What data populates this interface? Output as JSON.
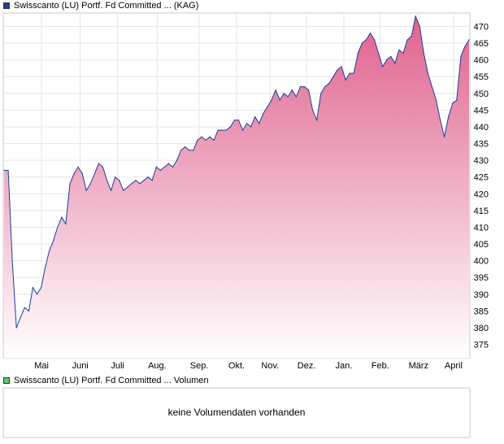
{
  "price_legend": {
    "label": "Swisscanto (LU) Portf. Fd Committed ... (KAG)",
    "color": "#1a3f99"
  },
  "volume_legend": {
    "label": "Swisscanto (LU) Portf. Fd Committed ... Volumen",
    "color": "#5cc86a"
  },
  "volume_panel": {
    "message": "keine Volumendaten vorhanden"
  },
  "chart_data": [
    {
      "type": "area",
      "series": [
        {
          "values": [
            427,
            427,
            400,
            380,
            383,
            386,
            385,
            392,
            390,
            392,
            398,
            403,
            406,
            410,
            413,
            411,
            423,
            426,
            428,
            426,
            421,
            423,
            426,
            429,
            428,
            424,
            421,
            425,
            424,
            421,
            422,
            423,
            424,
            423,
            424,
            425,
            424,
            428,
            427,
            428,
            429,
            428,
            430,
            433,
            434,
            433,
            433,
            436,
            437,
            436,
            437,
            436,
            439,
            439,
            439,
            440,
            442,
            442,
            439,
            441,
            440,
            443,
            441,
            444,
            446,
            448,
            451,
            448,
            450,
            449,
            451,
            449,
            452,
            452,
            451,
            445,
            442,
            450,
            452,
            453,
            455,
            457,
            458,
            454,
            456,
            456,
            462,
            465,
            466,
            468,
            466,
            462,
            458,
            460,
            461,
            459,
            463,
            462,
            466,
            467,
            473,
            470,
            462,
            456,
            452,
            448,
            442,
            437,
            443,
            447,
            448,
            461,
            464,
            466
          ],
          "color": "#1a3f99",
          "fill_top": "#e0628e",
          "fill_bottom": "#ffffff"
        }
      ],
      "x_labels": [
        "Mai",
        "Juni",
        "Juli",
        "Aug.",
        "Sep.",
        "Okt.",
        "Nov.",
        "Dez.",
        "Jan.",
        "Feb.",
        "März",
        "April"
      ],
      "x_label_fractions": [
        0.082,
        0.165,
        0.245,
        0.33,
        0.42,
        0.5,
        0.572,
        0.65,
        0.73,
        0.808,
        0.89,
        0.965
      ],
      "y_ticks": [
        375,
        380,
        385,
        390,
        395,
        400,
        405,
        410,
        415,
        420,
        425,
        430,
        435,
        440,
        445,
        450,
        455,
        460,
        465,
        470
      ],
      "ylim": [
        371,
        474
      ],
      "grid": true,
      "legend": "top-left"
    }
  ]
}
